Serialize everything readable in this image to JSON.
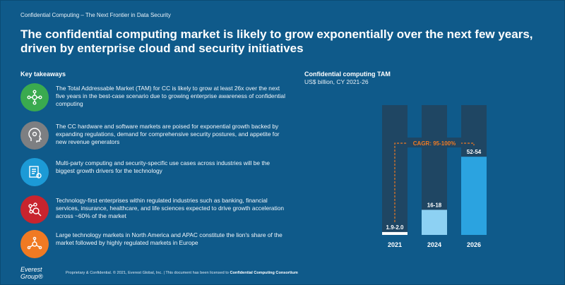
{
  "header": {
    "breadcrumb": "Confidential Computing – The Next Frontier in Data Security",
    "title": "The confidential computing market is likely to grow exponentially over the next few years, driven by enterprise cloud and security initiatives"
  },
  "takeaways": {
    "heading": "Key takeaways",
    "items": [
      {
        "icon": "network-people-icon",
        "color": "#3aaa4f",
        "text": "The Total Addressable Market (TAM) for CC is likely to grow at least 26x over the next five years in the best-case scenario due to growing enterprise awareness of confidential computing"
      },
      {
        "icon": "head-gear-icon",
        "color": "#7d7f82",
        "text": "The CC hardware and software markets are poised for exponential growth backed by expanding regulations, demand for comprehensive security postures, and appetite for new revenue generators"
      },
      {
        "icon": "document-gear-icon",
        "color": "#1c9ad6",
        "text": "Multi-party computing and security-specific use cases across industries will be the biggest growth drivers for the technology"
      },
      {
        "icon": "network-magnifier-icon",
        "color": "#c8242e",
        "text": "Technology-first enterprises within regulated industries such as banking, financial services, insurance, healthcare, and life sciences expected to drive growth acceleration across ~60% of the market"
      },
      {
        "icon": "hub-icon",
        "color": "#f07a23",
        "text": "Large technology markets in North America and APAC constitute the lion's share of the market followed by highly regulated markets in Europe"
      }
    ]
  },
  "chart_data": {
    "type": "bar",
    "title": "Confidential computing TAM",
    "subtitle": "US$ billion, CY 2021-26",
    "categories": [
      "2021",
      "2024",
      "2026"
    ],
    "value_labels": [
      "1.9-2.0",
      "16-18",
      "52-54"
    ],
    "values": [
      1.95,
      17,
      53
    ],
    "ylim": [
      0,
      88
    ],
    "annotation": "CAGR: 95-100%",
    "colors": {
      "track": "#1f4663",
      "bars": [
        "#ffffff",
        "#8dd1f3",
        "#2ba3e0"
      ],
      "annotation": "#f07a23"
    }
  },
  "footer": {
    "logo": "Everest Group®",
    "text": "Proprietary & Confidential. © 2021, Everest Global, Inc. | This document has been licensed to",
    "licensee": "Confidential Computing Consortium"
  }
}
